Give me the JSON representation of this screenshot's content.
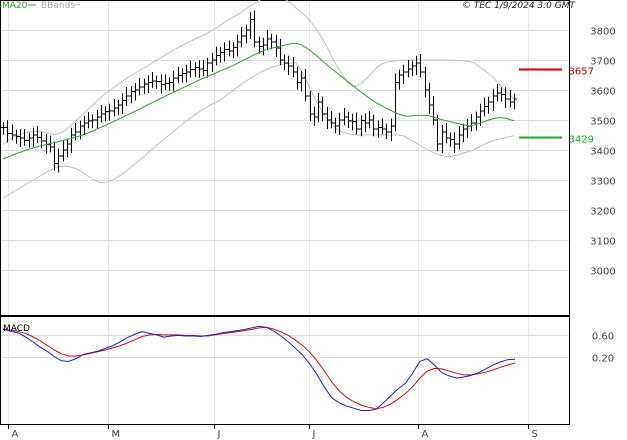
{
  "header": {
    "legend_ma": "MA20",
    "legend_bb": "BBands",
    "stamp": "© TEC 1/9/2024 3:0 GMT"
  },
  "colors": {
    "background": "#ffffff",
    "grid": "#dcdcdc",
    "price": "#000000",
    "ma20": "#2ca02c",
    "bbands": "#c0c0c0",
    "marker_red": "#cc0000",
    "marker_green": "#22aa22",
    "macd_blue": "#1f1fd0",
    "signal_red": "#cc1111"
  },
  "chart_data": [
    {
      "type": "ohlc",
      "title": "",
      "x_labels": [
        "A",
        "M",
        "J",
        "J",
        "A",
        "S"
      ],
      "ylim": [
        2850,
        3900
      ],
      "yticks": [
        "3000",
        "3100",
        "3200",
        "3300",
        "3400",
        "3500",
        "3600",
        "3700",
        "3800"
      ],
      "grid": true,
      "series": [
        {
          "name": "MA20",
          "values": [
            3370,
            3377,
            3384,
            3390,
            3396,
            3402,
            3407,
            3412,
            3416,
            3420,
            3424,
            3428,
            3432,
            3436,
            3441,
            3446,
            3452,
            3458,
            3465,
            3473,
            3480,
            3488,
            3496,
            3504,
            3512,
            3520,
            3528,
            3536,
            3545,
            3554,
            3562,
            3570,
            3579,
            3587,
            3595,
            3603,
            3611,
            3619,
            3627,
            3635,
            3642,
            3649,
            3656,
            3664,
            3671,
            3678,
            3686,
            3695,
            3704,
            3712,
            3720,
            3728,
            3734,
            3739,
            3743,
            3747,
            3751,
            3754,
            3756,
            3750,
            3740,
            3728,
            3714,
            3699,
            3684,
            3670,
            3657,
            3644,
            3630,
            3617,
            3603,
            3590,
            3578,
            3566,
            3555,
            3546,
            3537,
            3529,
            3521,
            3515,
            3512,
            3514,
            3516,
            3516,
            3515,
            3510,
            3505,
            3500,
            3496,
            3492,
            3488,
            3484,
            3481,
            3483,
            3488,
            3494,
            3500,
            3505,
            3508,
            3507,
            3503,
            3497
          ]
        },
        {
          "name": "BBands",
          "upper": [
            3420,
            3432,
            3442,
            3450,
            3456,
            3460,
            3462,
            3462,
            3460,
            3456,
            3452,
            3454,
            3462,
            3475,
            3490,
            3506,
            3522,
            3538,
            3554,
            3570,
            3584,
            3598,
            3610,
            3622,
            3634,
            3645,
            3655,
            3665,
            3675,
            3685,
            3696,
            3706,
            3716,
            3726,
            3736,
            3745,
            3754,
            3762,
            3770,
            3778,
            3786,
            3795,
            3805,
            3816,
            3828,
            3838,
            3848,
            3858,
            3870,
            3882,
            3892,
            3902,
            3908,
            3911,
            3911,
            3908,
            3900,
            3888,
            3872,
            3858,
            3844,
            3825,
            3800,
            3775,
            3745,
            3710,
            3680,
            3655,
            3628,
            3612,
            3612,
            3625,
            3640,
            3658,
            3677,
            3688,
            3693,
            3696,
            3698,
            3699,
            3700,
            3700,
            3700,
            3700,
            3700,
            3700,
            3700,
            3700,
            3700,
            3699,
            3698,
            3697,
            3695,
            3691,
            3680,
            3667,
            3655,
            3640,
            3620,
            3602,
            3588,
            3570
          ],
          "lower": [
            3240,
            3250,
            3260,
            3270,
            3280,
            3290,
            3300,
            3310,
            3320,
            3330,
            3338,
            3344,
            3346,
            3345,
            3340,
            3333,
            3322,
            3310,
            3300,
            3292,
            3290,
            3295,
            3303,
            3313,
            3325,
            3338,
            3352,
            3366,
            3380,
            3395,
            3410,
            3424,
            3438,
            3452,
            3466,
            3480,
            3494,
            3506,
            3518,
            3530,
            3540,
            3550,
            3558,
            3568,
            3580,
            3592,
            3605,
            3618,
            3630,
            3640,
            3650,
            3660,
            3668,
            3675,
            3680,
            3685,
            3688,
            3690,
            3691,
            3665,
            3630,
            3595,
            3560,
            3530,
            3505,
            3485,
            3470,
            3460,
            3455,
            3452,
            3450,
            3450,
            3450,
            3450,
            3450,
            3450,
            3450,
            3450,
            3450,
            3448,
            3440,
            3430,
            3420,
            3410,
            3400,
            3392,
            3385,
            3380,
            3378,
            3380,
            3384,
            3390,
            3395,
            3400,
            3410,
            3418,
            3425,
            3432,
            3436,
            3440,
            3444,
            3448
          ]
        },
        {
          "name": "Price",
          "close": [
            3475,
            3455,
            3450,
            3445,
            3440,
            3432,
            3440,
            3450,
            3442,
            3430,
            3418,
            3410,
            3355,
            3380,
            3400,
            3420,
            3450,
            3460,
            3480,
            3490,
            3497,
            3500,
            3510,
            3520,
            3528,
            3530,
            3540,
            3550,
            3565,
            3580,
            3595,
            3600,
            3610,
            3620,
            3625,
            3630,
            3628,
            3618,
            3622,
            3625,
            3640,
            3648,
            3655,
            3660,
            3668,
            3675,
            3670,
            3665,
            3690,
            3700,
            3715,
            3725,
            3735,
            3730,
            3742,
            3760,
            3780,
            3800,
            3835,
            3760,
            3745,
            3750,
            3770,
            3760,
            3740,
            3700,
            3690,
            3680,
            3660,
            3625,
            3640,
            3580,
            3520,
            3510,
            3560,
            3520,
            3500,
            3490,
            3480,
            3500,
            3510,
            3497,
            3495,
            3470,
            3498,
            3490,
            3500,
            3470,
            3475,
            3470,
            3460,
            3480,
            3625,
            3650,
            3660,
            3670,
            3680,
            3690,
            3660,
            3600,
            3550,
            3500,
            3420,
            3460,
            3440,
            3435,
            3420,
            3450,
            3470,
            3480,
            3490,
            3510,
            3530,
            3545,
            3560,
            3580,
            3590,
            3585,
            3570,
            3560,
            3570
          ]
        }
      ],
      "markers": [
        {
          "label": "3657",
          "value": 3670,
          "color": "#cc0000"
        },
        {
          "label": "3429",
          "value": 3445,
          "color": "#22aa22"
        }
      ]
    },
    {
      "type": "line",
      "title": "MACD",
      "ylim": [
        -1.05,
        0.95
      ],
      "yticks": [
        "0.60",
        "0.20"
      ],
      "grid": true,
      "series": [
        {
          "name": "MACD",
          "values": [
            0.71,
            0.67,
            0.64,
            0.57,
            0.48,
            0.38,
            0.3,
            0.2,
            0.12,
            0.11,
            0.16,
            0.24,
            0.27,
            0.3,
            0.35,
            0.4,
            0.47,
            0.55,
            0.61,
            0.66,
            0.63,
            0.6,
            0.56,
            0.58,
            0.59,
            0.58,
            0.58,
            0.57,
            0.59,
            0.61,
            0.64,
            0.66,
            0.68,
            0.7,
            0.73,
            0.76,
            0.74,
            0.67,
            0.58,
            0.47,
            0.35,
            0.22,
            0.05,
            -0.15,
            -0.38,
            -0.57,
            -0.66,
            -0.72,
            -0.76,
            -0.8,
            -0.8,
            -0.78,
            -0.66,
            -0.53,
            -0.4,
            -0.3,
            -0.11,
            0.11,
            0.16,
            0.04,
            -0.1,
            -0.16,
            -0.2,
            -0.18,
            -0.15,
            -0.1,
            -0.03,
            0.04,
            0.1,
            0.14,
            0.15
          ]
        },
        {
          "name": "Signal",
          "values": [
            0.7,
            0.69,
            0.67,
            0.63,
            0.57,
            0.5,
            0.41,
            0.32,
            0.25,
            0.21,
            0.21,
            0.23,
            0.26,
            0.29,
            0.32,
            0.36,
            0.4,
            0.45,
            0.51,
            0.57,
            0.6,
            0.61,
            0.6,
            0.6,
            0.6,
            0.59,
            0.59,
            0.58,
            0.58,
            0.6,
            0.62,
            0.64,
            0.66,
            0.68,
            0.7,
            0.73,
            0.74,
            0.71,
            0.66,
            0.59,
            0.5,
            0.4,
            0.27,
            0.11,
            -0.08,
            -0.28,
            -0.44,
            -0.56,
            -0.64,
            -0.7,
            -0.74,
            -0.77,
            -0.74,
            -0.68,
            -0.59,
            -0.49,
            -0.36,
            -0.2,
            -0.07,
            -0.02,
            -0.03,
            -0.07,
            -0.11,
            -0.14,
            -0.14,
            -0.12,
            -0.09,
            -0.05,
            0.0,
            0.04,
            0.08
          ]
        }
      ]
    }
  ]
}
